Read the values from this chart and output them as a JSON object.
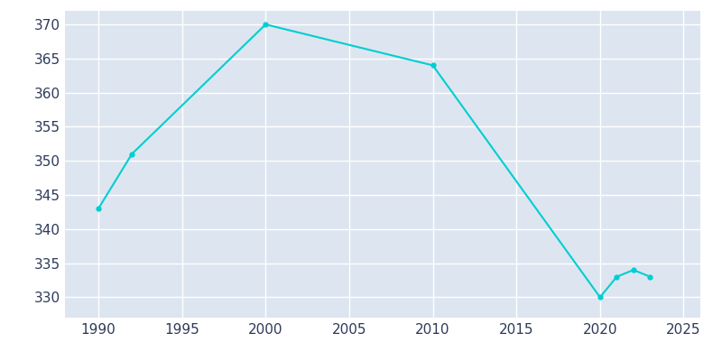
{
  "years": [
    1990,
    1992,
    2000,
    2010,
    2020,
    2021,
    2022,
    2023
  ],
  "population": [
    343,
    351,
    370,
    364,
    330,
    333,
    334,
    333
  ],
  "line_color": "#00CED1",
  "plot_bg_color": "#dde6f0",
  "fig_bg_color": "#ffffff",
  "grid_color": "#ffffff",
  "xlim": [
    1988,
    2026
  ],
  "ylim": [
    327,
    372
  ],
  "yticks": [
    330,
    335,
    340,
    345,
    350,
    355,
    360,
    365,
    370
  ],
  "xticks": [
    1990,
    1995,
    2000,
    2005,
    2010,
    2015,
    2020,
    2025
  ],
  "tick_color": "#2d3a5a",
  "tick_fontsize": 11
}
